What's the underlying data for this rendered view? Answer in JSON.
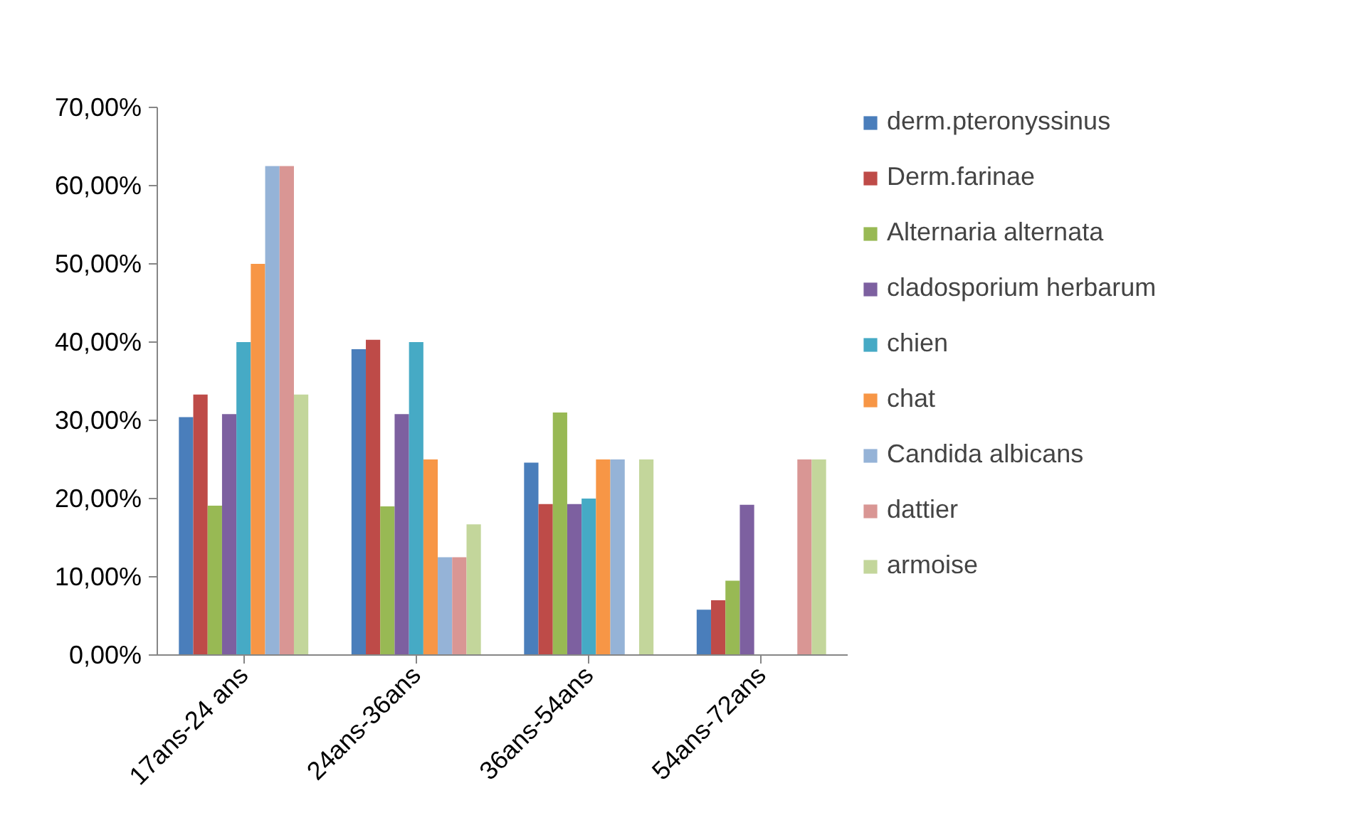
{
  "chart_data": {
    "type": "bar",
    "categories": [
      "17ans-24 ans",
      "24ans-36ans",
      "36ans-54ans",
      "54ans-72ans"
    ],
    "ylim": [
      0,
      70
    ],
    "yticks": [
      {
        "value": 0,
        "label": "0,00%"
      },
      {
        "value": 10,
        "label": "10,00%"
      },
      {
        "value": 20,
        "label": "20,00%"
      },
      {
        "value": 30,
        "label": "30,00%"
      },
      {
        "value": 40,
        "label": "40,00%"
      },
      {
        "value": 50,
        "label": "50,00%"
      },
      {
        "value": 60,
        "label": "60,00%"
      },
      {
        "value": 70,
        "label": "70,00%"
      }
    ],
    "grid": false,
    "legend": "right",
    "series": [
      {
        "name": "derm.pteronyssinus",
        "color": "#4a7ebb",
        "values": [
          30.4,
          39.1,
          24.6,
          5.8
        ]
      },
      {
        "name": "Derm.farinae",
        "color": "#be4b48",
        "values": [
          33.3,
          40.3,
          19.3,
          7.0
        ]
      },
      {
        "name": "Alternaria alternata",
        "color": "#98b954",
        "values": [
          19.1,
          19.0,
          31.0,
          9.5
        ]
      },
      {
        "name": "cladosporium herbarum",
        "color": "#7d60a0",
        "values": [
          30.8,
          30.8,
          19.3,
          19.2
        ]
      },
      {
        "name": "chien",
        "color": "#46aac5",
        "values": [
          40.0,
          40.0,
          20.0,
          0
        ]
      },
      {
        "name": "chat",
        "color": "#f79646",
        "values": [
          50.0,
          25.0,
          25.0,
          0
        ]
      },
      {
        "name": "Candida albicans",
        "color": "#95b3d7",
        "values": [
          62.5,
          12.5,
          25.0,
          0
        ]
      },
      {
        "name": "dattier",
        "color": "#d99694",
        "values": [
          62.5,
          12.5,
          0,
          25.0
        ]
      },
      {
        "name": "armoise",
        "color": "#c3d69b",
        "values": [
          33.3,
          16.7,
          25.0,
          25.0
        ]
      }
    ]
  }
}
